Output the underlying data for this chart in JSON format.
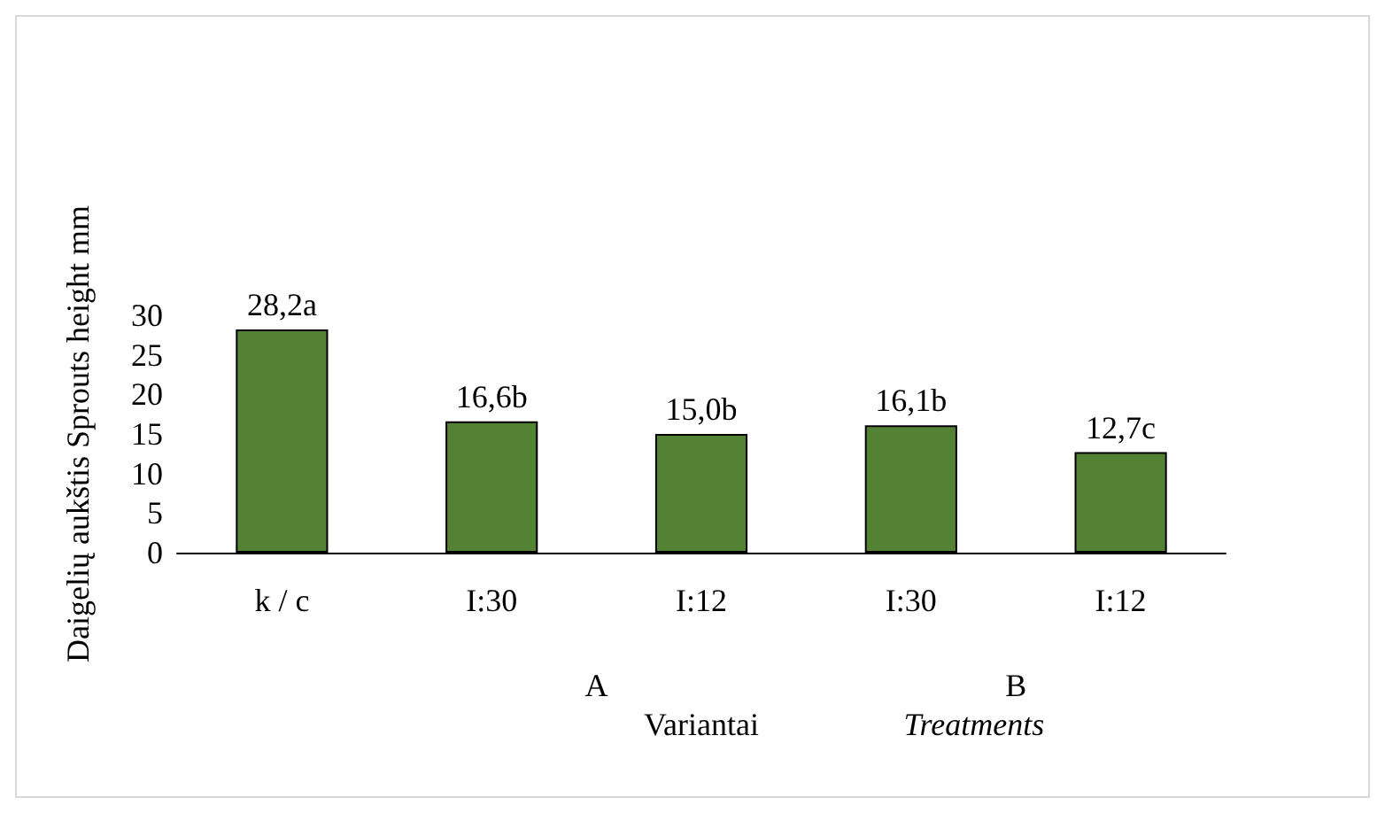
{
  "chart_data": {
    "type": "bar",
    "categories": [
      "k / c",
      "I:30",
      "I:12",
      "I:30",
      "I:12"
    ],
    "values": [
      28.2,
      16.6,
      15.0,
      16.1,
      12.7
    ],
    "value_labels": [
      "28,2a",
      "16,6b",
      "15,0b",
      "16,1b",
      "12,7c"
    ],
    "color": "#548235",
    "ylim": [
      0,
      30
    ],
    "yticks": [
      0,
      5,
      10,
      15,
      20,
      25,
      30
    ],
    "ylabel": "Daigelių aukštis Sprouts height mm",
    "xlabel": "Variantai Treatments",
    "annotations": [
      "A",
      "B"
    ],
    "grid": false
  }
}
